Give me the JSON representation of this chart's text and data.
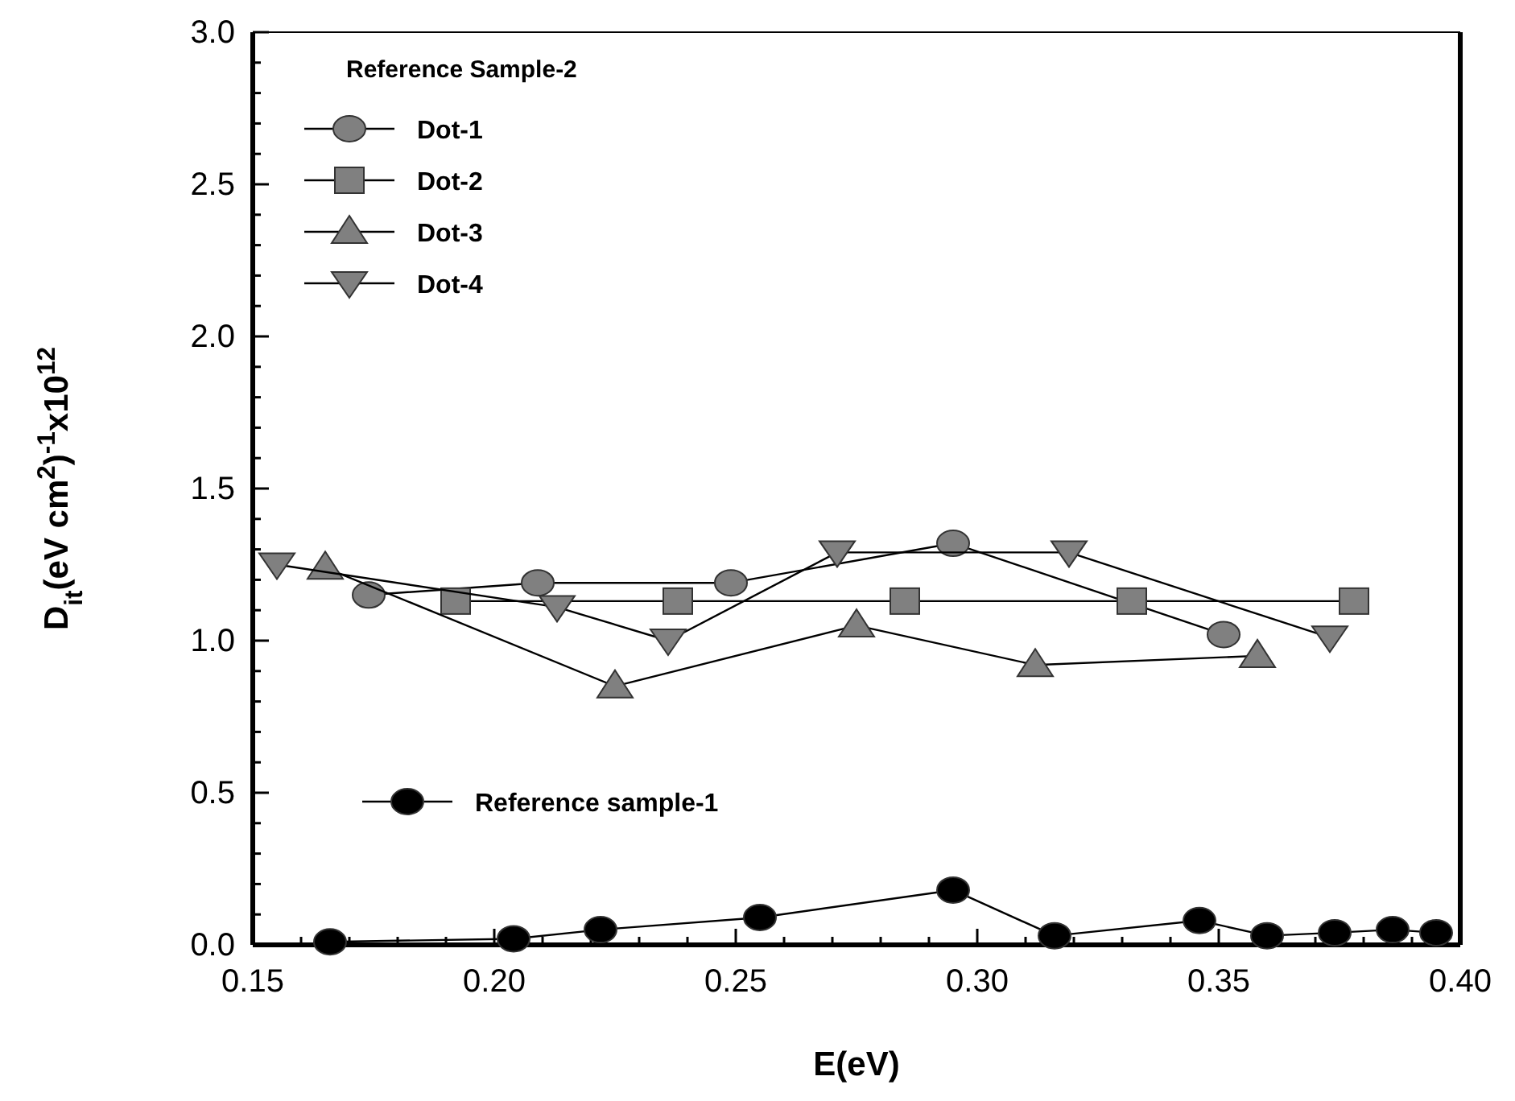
{
  "chart_data": {
    "type": "line",
    "xlabel": "E(eV)",
    "ylabel": "D$_{it}$(eV cm$^{2}$)$^{-1}$x10$^{12}$",
    "legend_title": "Reference Sample-2",
    "legend": "top left",
    "grid": false,
    "xlim": [
      0.15,
      0.4
    ],
    "ylim": [
      0,
      3
    ],
    "xticks": [
      {
        "value": 0.15,
        "label": "0.15"
      },
      {
        "value": 0.16,
        "label": null
      },
      {
        "value": 0.17,
        "label": null
      },
      {
        "value": 0.18,
        "label": null
      },
      {
        "value": 0.19,
        "label": null
      },
      {
        "value": 0.2,
        "label": "0.20"
      },
      {
        "value": 0.21,
        "label": null
      },
      {
        "value": 0.22,
        "label": null
      },
      {
        "value": 0.23,
        "label": null
      },
      {
        "value": 0.24,
        "label": null
      },
      {
        "value": 0.25,
        "label": "0.25"
      },
      {
        "value": 0.26,
        "label": null
      },
      {
        "value": 0.27,
        "label": null
      },
      {
        "value": 0.28,
        "label": null
      },
      {
        "value": 0.29,
        "label": null
      },
      {
        "value": 0.3,
        "label": "0.30"
      },
      {
        "value": 0.31,
        "label": null
      },
      {
        "value": 0.32,
        "label": null
      },
      {
        "value": 0.33,
        "label": null
      },
      {
        "value": 0.34,
        "label": null
      },
      {
        "value": 0.35,
        "label": "0.35"
      },
      {
        "value": 0.36,
        "label": null
      },
      {
        "value": 0.37,
        "label": null
      },
      {
        "value": 0.38,
        "label": null
      },
      {
        "value": 0.39,
        "label": null
      },
      {
        "value": 0.4,
        "label": "0.40"
      }
    ],
    "yticks": [
      {
        "value": 0,
        "label": "0.0"
      },
      {
        "value": 0.1,
        "label": null
      },
      {
        "value": 0.2,
        "label": null
      },
      {
        "value": 0.3,
        "label": null
      },
      {
        "value": 0.4,
        "label": null
      },
      {
        "value": 0.5,
        "label": "0.5"
      },
      {
        "value": 0.6,
        "label": null
      },
      {
        "value": 0.7,
        "label": null
      },
      {
        "value": 0.8,
        "label": null
      },
      {
        "value": 0.9,
        "label": null
      },
      {
        "value": 1,
        "label": "1.0"
      },
      {
        "value": 1.1,
        "label": null
      },
      {
        "value": 1.2,
        "label": null
      },
      {
        "value": 1.3,
        "label": null
      },
      {
        "value": 1.4,
        "label": null
      },
      {
        "value": 1.5,
        "label": "1.5"
      },
      {
        "value": 1.6,
        "label": null
      },
      {
        "value": 1.7,
        "label": null
      },
      {
        "value": 1.8,
        "label": null
      },
      {
        "value": 1.9,
        "label": null
      },
      {
        "value": 2,
        "label": "2.0"
      },
      {
        "value": 2.1,
        "label": null
      },
      {
        "value": 2.2,
        "label": null
      },
      {
        "value": 2.3,
        "label": null
      },
      {
        "value": 2.4,
        "label": null
      },
      {
        "value": 2.5,
        "label": "2.5"
      },
      {
        "value": 2.6,
        "label": null
      },
      {
        "value": 2.7,
        "label": null
      },
      {
        "value": 2.8,
        "label": null
      },
      {
        "value": 2.9,
        "label": null
      },
      {
        "value": 3,
        "label": "3.0"
      }
    ],
    "series": [
      {
        "name": "Dot-1",
        "color": "#808080",
        "marker": "circle",
        "x": [
          0.174,
          0.209,
          0.249,
          0.295,
          0.351
        ],
        "values": [
          1.15,
          1.19,
          1.19,
          1.32,
          1.02
        ]
      },
      {
        "name": "Dot-2",
        "color": "#808080",
        "marker": "square",
        "x": [
          0.192,
          0.238,
          0.285,
          0.332,
          0.378
        ],
        "values": [
          1.13,
          1.13,
          1.13,
          1.13,
          1.13
        ]
      },
      {
        "name": "Dot-3",
        "color": "#808080",
        "marker": "triangle",
        "x": [
          0.165,
          0.225,
          0.275,
          0.312,
          0.358
        ],
        "values": [
          1.24,
          0.85,
          1.05,
          0.92,
          0.95
        ]
      },
      {
        "name": "Dot-4",
        "color": "#808080",
        "marker": "triangle-down",
        "x": [
          0.155,
          0.213,
          0.236,
          0.271,
          0.319,
          0.373
        ],
        "values": [
          1.25,
          1.11,
          1.0,
          1.29,
          1.29,
          1.01
        ]
      },
      {
        "name": "Reference sample-1",
        "color": "#000000",
        "marker": "circle",
        "x": [
          0.166,
          0.204,
          0.222,
          0.255,
          0.295,
          0.316,
          0.346,
          0.36,
          0.374,
          0.386,
          0.395
        ],
        "values": [
          0.01,
          0.02,
          0.05,
          0.09,
          0.18,
          0.03,
          0.08,
          0.03,
          0.04,
          0.05,
          0.04
        ]
      }
    ]
  }
}
